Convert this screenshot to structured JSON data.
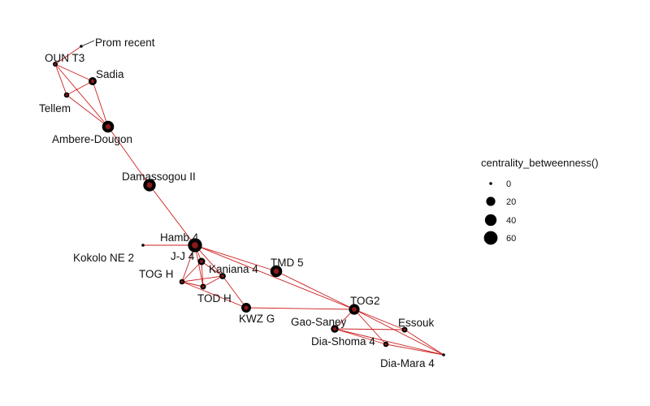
{
  "legend": {
    "title": "centrality_betweenness()",
    "items": [
      {
        "label": "0",
        "value": 0
      },
      {
        "label": "20",
        "value": 20
      },
      {
        "label": "40",
        "value": 40
      },
      {
        "label": "60",
        "value": 60
      }
    ]
  },
  "colors": {
    "edge": "#cc1f1f",
    "node": "#000000",
    "node_core": "#8b1a1a"
  },
  "nodes": [
    {
      "id": "prom",
      "label": "Prom recent",
      "betweenness": 0
    },
    {
      "id": "oun",
      "label": "OUN T3",
      "betweenness": 2
    },
    {
      "id": "sadia",
      "label": "Sadia",
      "betweenness": 14
    },
    {
      "id": "tellem",
      "label": "Tellem",
      "betweenness": 3
    },
    {
      "id": "ambere",
      "label": "Ambere-Dougon",
      "betweenness": 42
    },
    {
      "id": "dama",
      "label": "Damassogou II",
      "betweenness": 48
    },
    {
      "id": "hamb",
      "label": "Hamb 4",
      "betweenness": 65
    },
    {
      "id": "kokolo",
      "label": "Kokolo NE 2",
      "betweenness": 0
    },
    {
      "id": "jj",
      "label": "J-J 4",
      "betweenness": 10
    },
    {
      "id": "togh",
      "label": "TOG H",
      "betweenness": 3
    },
    {
      "id": "kaniana",
      "label": "Kaniana 4",
      "betweenness": 6
    },
    {
      "id": "todh",
      "label": "TOD H",
      "betweenness": 4
    },
    {
      "id": "tmd5",
      "label": "TMD 5",
      "betweenness": 42
    },
    {
      "id": "kwz",
      "label": "KWZ G",
      "betweenness": 24
    },
    {
      "id": "tog2",
      "label": "TOG2",
      "betweenness": 32
    },
    {
      "id": "gao",
      "label": "Gao-Saney",
      "betweenness": 12
    },
    {
      "id": "essouk",
      "label": "Essouk",
      "betweenness": 4
    },
    {
      "id": "diashoma",
      "label": "Dia-Shoma 4",
      "betweenness": 3
    },
    {
      "id": "diamara",
      "label": "Dia-Mara 4",
      "betweenness": 0
    }
  ],
  "edges": [
    [
      "prom",
      "oun"
    ],
    [
      "oun",
      "sadia"
    ],
    [
      "oun",
      "tellem"
    ],
    [
      "oun",
      "ambere"
    ],
    [
      "sadia",
      "tellem"
    ],
    [
      "sadia",
      "ambere"
    ],
    [
      "tellem",
      "ambere"
    ],
    [
      "ambere",
      "dama"
    ],
    [
      "dama",
      "hamb"
    ],
    [
      "hamb",
      "kokolo"
    ],
    [
      "hamb",
      "jj"
    ],
    [
      "hamb",
      "togh"
    ],
    [
      "hamb",
      "kaniana"
    ],
    [
      "hamb",
      "todh"
    ],
    [
      "hamb",
      "tmd5"
    ],
    [
      "hamb",
      "tog2"
    ],
    [
      "jj",
      "togh"
    ],
    [
      "jj",
      "kaniana"
    ],
    [
      "jj",
      "todh"
    ],
    [
      "togh",
      "kaniana"
    ],
    [
      "togh",
      "todh"
    ],
    [
      "togh",
      "kwz"
    ],
    [
      "kaniana",
      "todh"
    ],
    [
      "kaniana",
      "kwz"
    ],
    [
      "tmd5",
      "tog2"
    ],
    [
      "kwz",
      "tog2"
    ],
    [
      "tog2",
      "gao"
    ],
    [
      "tog2",
      "essouk"
    ],
    [
      "tog2",
      "diashoma"
    ],
    [
      "tog2",
      "diamara"
    ],
    [
      "gao",
      "essouk"
    ],
    [
      "gao",
      "diashoma"
    ],
    [
      "gao",
      "diamara"
    ],
    [
      "essouk",
      "diamara"
    ],
    [
      "diashoma",
      "diamara"
    ]
  ]
}
